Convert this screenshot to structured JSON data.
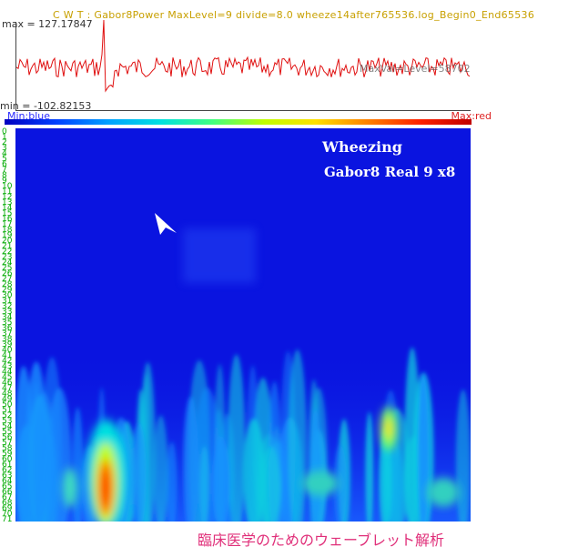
{
  "header": {
    "title": "C W T : Gabor8Power MaxLevel=9 divide=8.0 wheeze14after765536.log_Begin0_End65536",
    "max_label": "max = 127.17847",
    "min_label": "min = -102.82153",
    "maxval_overlay": "MaxVal=Level=58702"
  },
  "colorbar": {
    "min_label": "Min:blue",
    "max_label": "Max:red"
  },
  "overlay": {
    "line1": "Wheezing",
    "line2": "Gabor8 Real  9 x8"
  },
  "caption": "臨床医学のためのウェーブレット解析",
  "scale_ticks": [
    "0",
    "1",
    "2",
    "3",
    "4",
    "5",
    "6",
    "7",
    "8",
    "9",
    "10",
    "11",
    "12",
    "13",
    "14",
    "15",
    "16",
    "17",
    "18",
    "19",
    "20",
    "21",
    "22",
    "23",
    "24",
    "25",
    "26",
    "27",
    "28",
    "29",
    "30",
    "31",
    "32",
    "33",
    "34",
    "35",
    "36",
    "37",
    "38",
    "39",
    "40",
    "41",
    "42",
    "43",
    "44",
    "45",
    "46",
    "47",
    "48",
    "49",
    "50",
    "51",
    "52",
    "53",
    "54",
    "55",
    "56",
    "57",
    "58",
    "59",
    "60",
    "61",
    "62",
    "63",
    "64",
    "65",
    "66",
    "67",
    "68",
    "69",
    "70",
    "71"
  ],
  "colors": {
    "background_field": "#0a14e0",
    "waveform": "#e01010",
    "tick_text": "#00aa00",
    "caption": "#e0307a",
    "title": "#c8a000"
  }
}
